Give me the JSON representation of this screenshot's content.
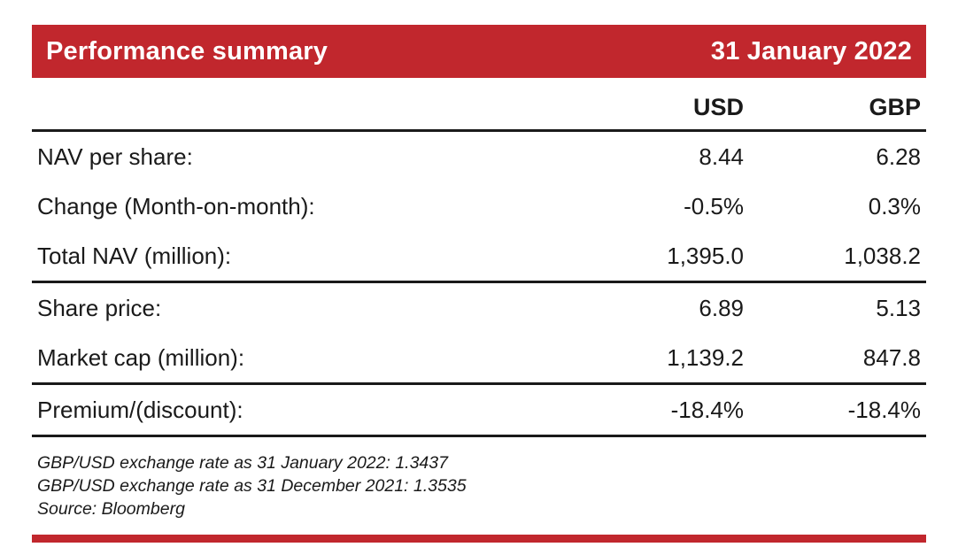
{
  "header": {
    "title": "Performance summary",
    "date": "31 January 2022"
  },
  "table": {
    "columns": [
      "USD",
      "GBP"
    ],
    "rows": [
      {
        "label": "NAV per share:",
        "usd": "8.44",
        "gbp": "6.28"
      },
      {
        "label": "Change (Month-on-month):",
        "usd": "-0.5%",
        "gbp": "0.3%"
      },
      {
        "label": "Total NAV (million):",
        "usd": "1,395.0",
        "gbp": "1,038.2"
      },
      {
        "label": "Share price:",
        "usd": "6.89",
        "gbp": "5.13"
      },
      {
        "label": "Market cap (million):",
        "usd": "1,139.2",
        "gbp": "847.8"
      },
      {
        "label": "Premium/(discount):",
        "usd": "-18.4%",
        "gbp": "-18.4%"
      }
    ]
  },
  "footnotes": [
    "GBP/USD exchange rate as 31 January 2022: 1.3437",
    "GBP/USD exchange rate as 31 December 2021: 1.3535",
    "Source: Bloomberg"
  ],
  "colors": {
    "accent_red": "#c1272d",
    "text": "#1a1a1a"
  }
}
